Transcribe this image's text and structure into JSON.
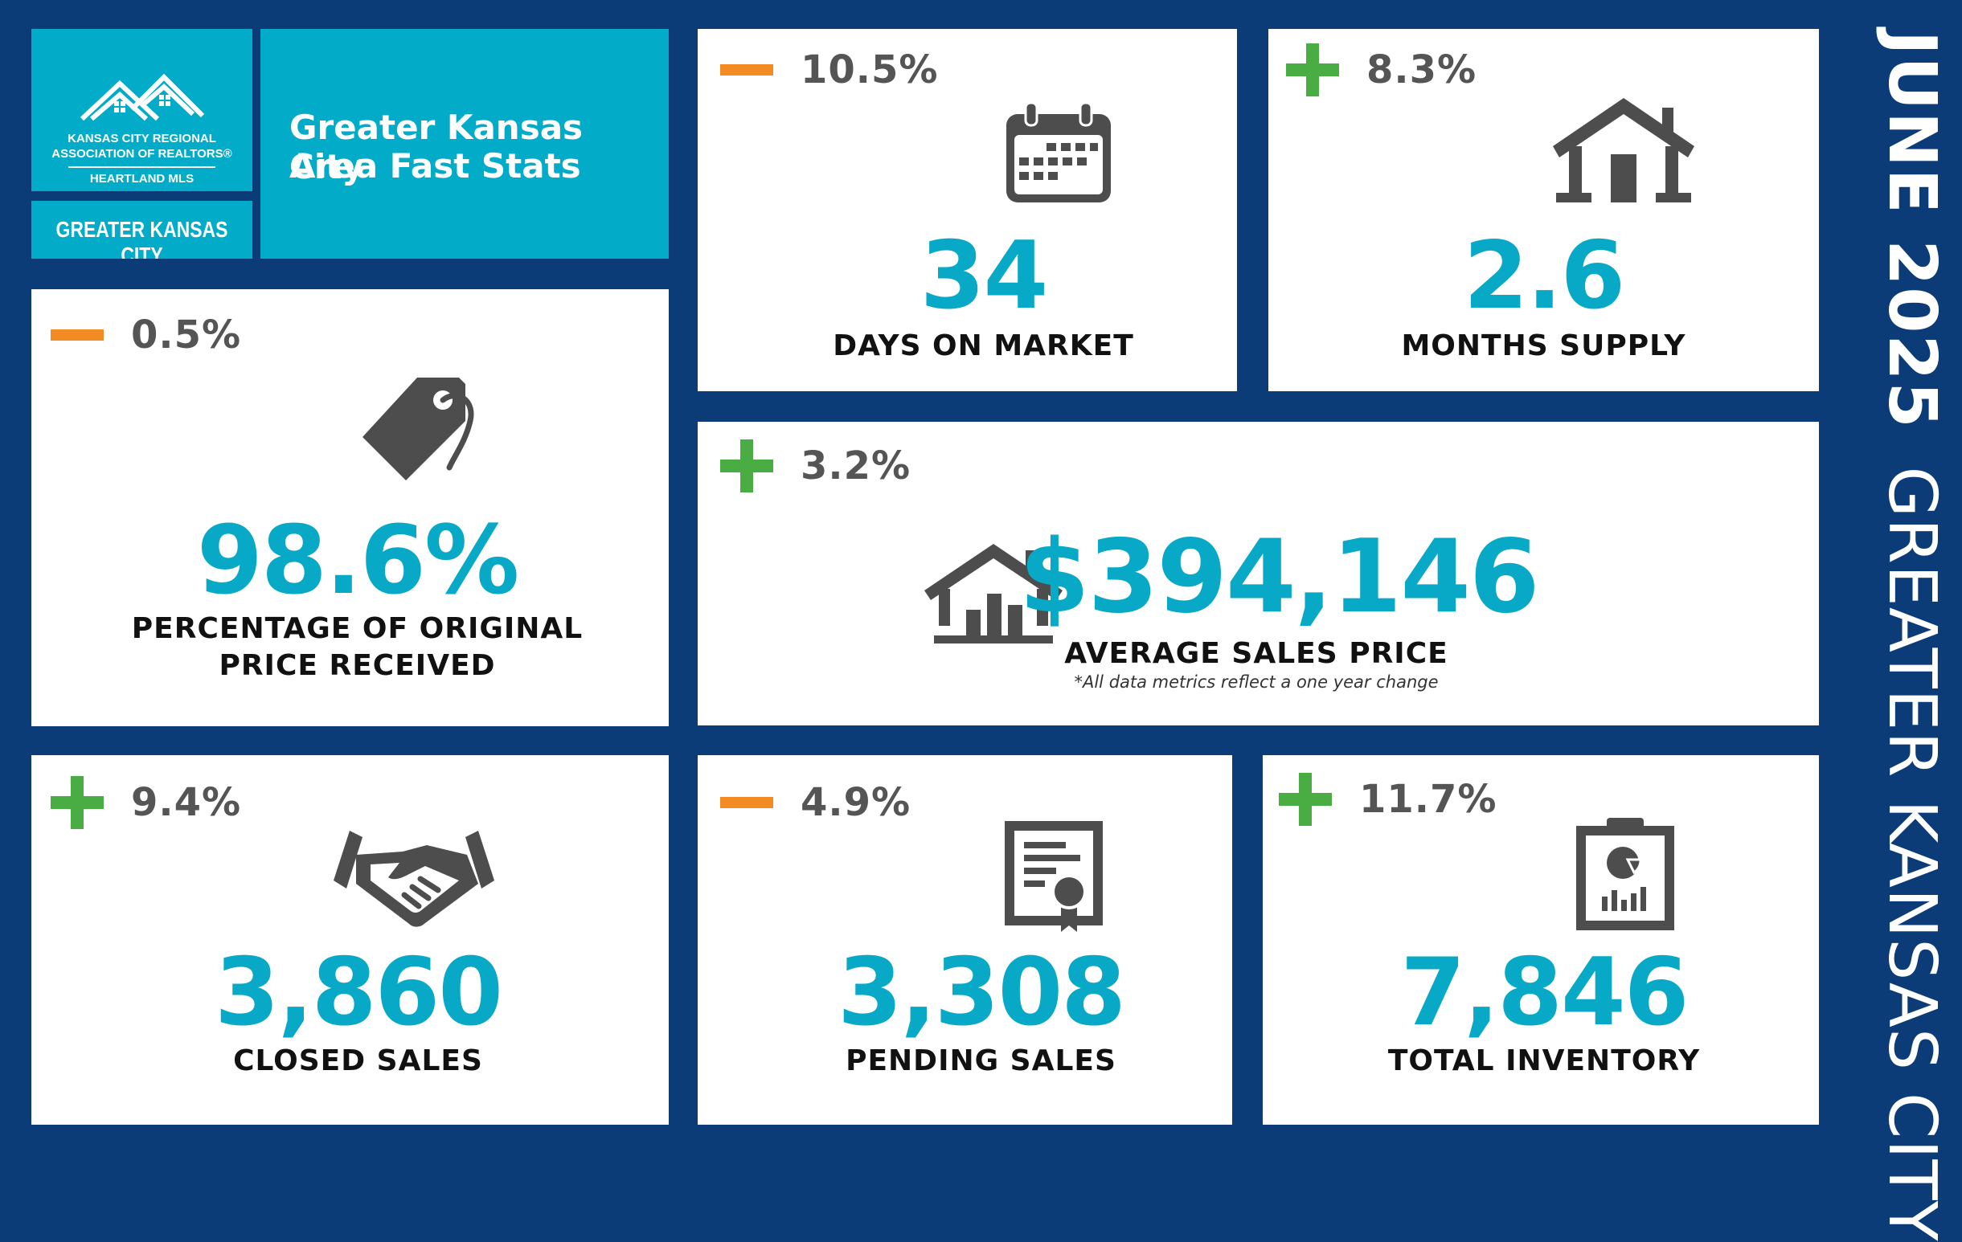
{
  "header": {
    "logo_line1": "KANSAS CITY REGIONAL",
    "logo_line2": "ASSOCIATION OF REALTORS®",
    "logo_line3": "HEARTLAND MLS",
    "region_tag": "GREATER KANSAS CITY",
    "title_line1": "Greater Kansas City",
    "title_line2": "Area Fast Stats"
  },
  "side": {
    "date": "JUNE 2025",
    "region": "GREATER KANSAS CITY"
  },
  "stats": {
    "days_on_market": {
      "change": "10.5%",
      "direction": "down",
      "value": "34",
      "label": "DAYS ON MARKET",
      "icon": "calendar-icon"
    },
    "months_supply": {
      "change": "8.3%",
      "direction": "up",
      "value": "2.6",
      "label": "MONTHS SUPPLY",
      "icon": "house-icon"
    },
    "pct_original_price": {
      "change": "0.5%",
      "direction": "down",
      "value": "98.6%",
      "label_line1": "PERCENTAGE OF ORIGINAL",
      "label_line2": "PRICE RECEIVED",
      "icon": "price-tag-icon"
    },
    "avg_sales_price": {
      "change": "3.2%",
      "direction": "up",
      "value": "$394,146",
      "label": "AVERAGE SALES PRICE",
      "footnote": "*All data metrics reflect a one year change",
      "icon": "house-chart-icon"
    },
    "closed_sales": {
      "change": "9.4%",
      "direction": "up",
      "value": "3,860",
      "label": "CLOSED SALES",
      "icon": "handshake-icon"
    },
    "pending_sales": {
      "change": "4.9%",
      "direction": "down",
      "value": "3,308",
      "label": "PENDING SALES",
      "icon": "certificate-icon"
    },
    "total_inventory": {
      "change": "11.7%",
      "direction": "up",
      "value": "7,846",
      "label": "TOTAL INVENTORY",
      "icon": "clipboard-chart-icon"
    }
  },
  "colors": {
    "background": "#0b3c78",
    "accent_teal": "#02abc7",
    "value_teal": "#08a9c6",
    "increase_green": "#49ad44",
    "decrease_orange": "#f28b22",
    "icon_gray": "#4d4d4d"
  }
}
